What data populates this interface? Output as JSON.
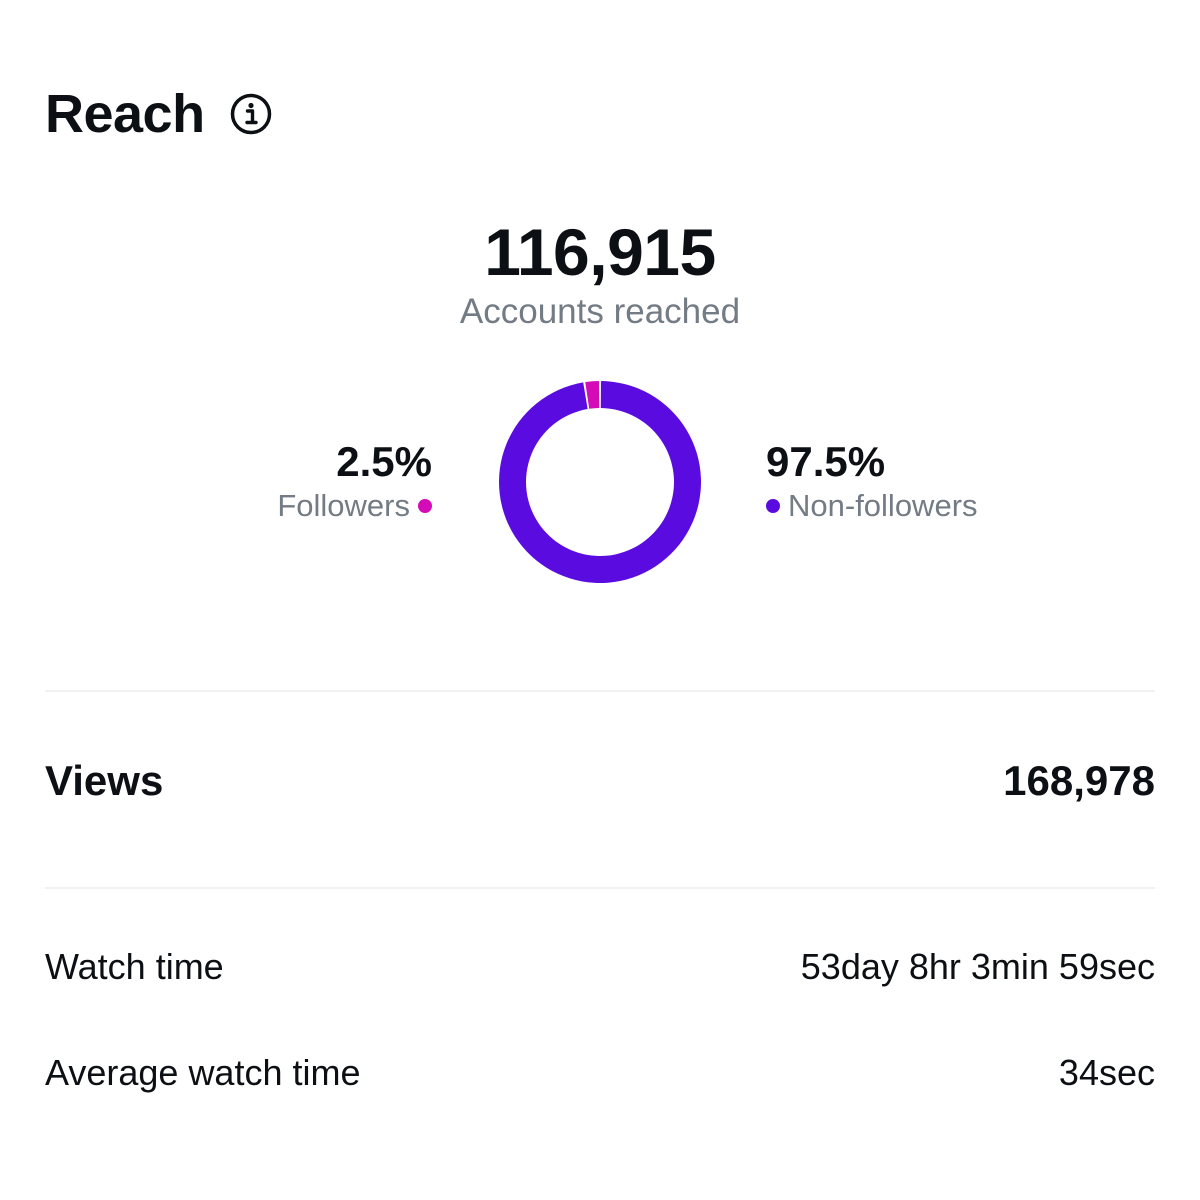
{
  "header": {
    "title": "Reach"
  },
  "icons": {
    "info": "info-icon"
  },
  "reach": {
    "total": "116,915",
    "total_label": "Accounts reached",
    "followers": {
      "percent": "2.5%",
      "label": "Followers",
      "value": 2.5,
      "color": "#d30cb8"
    },
    "non_followers": {
      "percent": "97.5%",
      "label": "Non-followers",
      "value": 97.5,
      "color": "#5a0ce0"
    }
  },
  "chart_data": {
    "type": "pie",
    "categories": [
      "Followers",
      "Non-followers"
    ],
    "values": [
      2.5,
      97.5
    ],
    "colors": [
      "#d30cb8",
      "#5a0ce0"
    ],
    "title": "",
    "style": "donut"
  },
  "metrics": {
    "views": {
      "label": "Views",
      "value": "168,978"
    },
    "watch_time": {
      "label": "Watch time",
      "value": "53day 8hr 3min 59sec"
    },
    "avg_watch_time": {
      "label": "Average watch time",
      "value": "34sec"
    }
  }
}
